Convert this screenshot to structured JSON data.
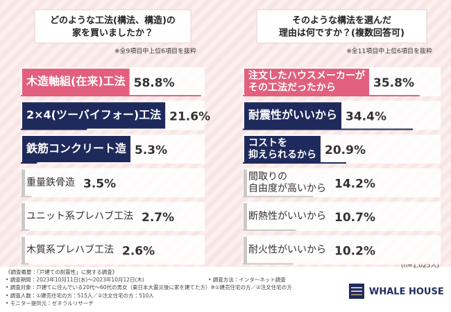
{
  "chart_data": [
    {
      "type": "bar",
      "orientation": "horizontal",
      "title": [
        "どのような工法(構法、構造)の",
        "家を買いましたか？"
      ],
      "note": "※全9項目中上位6項目を抜粋",
      "categories": [
        [
          "木造軸組(在来)工法"
        ],
        [
          "2×4(ツーバイフォー)工法"
        ],
        [
          "鉄筋コンクリート造"
        ],
        [
          "重量鉄骨造"
        ],
        [
          "ユニット系プレハブ工法"
        ],
        [
          "木質系プレハブ工法"
        ]
      ],
      "values": [
        58.8,
        21.6,
        5.3,
        3.5,
        2.7,
        2.6
      ],
      "value_labels": [
        "58.8%",
        "21.6%",
        "5.3%",
        "3.5%",
        "2.7%",
        "2.6%"
      ],
      "colors": [
        "#e2607e",
        "#1f2a5c",
        "#1f2a5c",
        "#c9c9c9",
        "#c9c9c9",
        "#c9c9c9"
      ],
      "xlim": [
        0,
        60
      ]
    },
    {
      "type": "bar",
      "orientation": "horizontal",
      "title": [
        "そのような構法を選んだ",
        "理由は何ですか？(複数回答可)"
      ],
      "note": "※全11項目中上位6項目を抜粋",
      "categories": [
        [
          "注文したハウスメーカーが",
          "その工法だったから"
        ],
        [
          "耐震性がいいから"
        ],
        [
          "コストを",
          "抑えられるから"
        ],
        [
          "間取りの",
          "自由度が高いから"
        ],
        [
          "断熱性がいいから"
        ],
        [
          "耐火性がいいから"
        ]
      ],
      "values": [
        35.8,
        34.4,
        20.9,
        14.2,
        10.7,
        10.2
      ],
      "value_labels": [
        "35.8%",
        "34.4%",
        "20.9%",
        "14.2%",
        "10.7%",
        "10.2%"
      ],
      "colors": [
        "#e2607e",
        "#1f2a5c",
        "#1f2a5c",
        "#c9c9c9",
        "#c9c9c9",
        "#c9c9c9"
      ],
      "xlim": [
        0,
        40
      ],
      "sample": "(n=1,025人)"
    }
  ],
  "footer": {
    "left": [
      "《調査概要：「戸建ての耐震性」に関する調査》",
      "• 調査期間：2023年10月11日(水)～2023年10月12日(木)",
      "• 調査対象：戸建てに住んでいる20代～60代の男女（東日本大震災後に家を建てた方）※①建売住宅の方／②注文住宅の方",
      "• 調査人数：①建売住宅の方：515人／②注文住宅の方：510人"
    ],
    "right": [
      "• 調査方法：インターネット調査",
      "• モニター提供元：ゼネラルリサーチ"
    ]
  },
  "logo": "WHALE HOUSE"
}
